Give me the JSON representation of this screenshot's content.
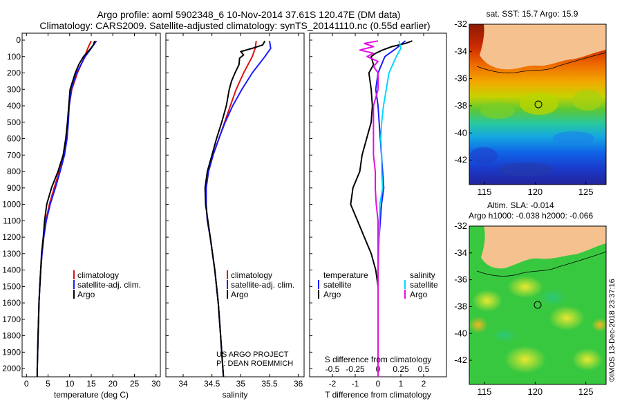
{
  "header": {
    "title_line1": "Argo profile: aoml 5902348_6 10-Nov-2014 37.61S 120.47E (DM data)",
    "title_line2": "Climatology: CARS2009. Satellite-adjusted climatology: synTS_20141110.nc (0.55d earlier)"
  },
  "credits": {
    "project": "US ARGO PROJECT",
    "pi": "PI: DEAN ROEMMICH",
    "imos": "©IMOS 13-Dec-2018 23:37:16"
  },
  "colors": {
    "climatology": "#e01010",
    "satellite": "#1a1aff",
    "argo": "#000000",
    "salinity_sat": "#00d8ff",
    "salinity_argo": "#e010e0",
    "land": "#f5c28f"
  },
  "chart_data": [
    {
      "id": "temperature",
      "type": "line",
      "xlabel": "temperature (deg C)",
      "ylabel": "",
      "xlim": [
        -1,
        31
      ],
      "ylim": [
        2050,
        0
      ],
      "xticks": [
        0,
        5,
        10,
        15,
        20,
        25,
        30
      ],
      "yticks": [
        0,
        100,
        200,
        300,
        400,
        500,
        600,
        700,
        800,
        900,
        1000,
        1100,
        1200,
        1300,
        1400,
        1500,
        1600,
        1700,
        1800,
        1900,
        2000
      ],
      "legend": [
        "climatology",
        "satellite-adj. clim.",
        "Argo"
      ],
      "legend_position": "lower-right",
      "series": [
        {
          "name": "climatology",
          "color": "red",
          "depth": [
            5,
            50,
            100,
            200,
            300,
            400,
            500,
            600,
            700,
            800,
            900,
            1000,
            1100,
            1200,
            1300,
            1400,
            1500,
            1600,
            1700,
            1800,
            1900,
            2000,
            2050
          ],
          "values": [
            15.0,
            14.2,
            13.5,
            11.8,
            10.5,
            9.9,
            9.6,
            9.2,
            8.6,
            7.6,
            6.4,
            5.3,
            4.5,
            4.0,
            3.6,
            3.3,
            3.1,
            2.9,
            2.8,
            2.7,
            2.6,
            2.5,
            2.5
          ]
        },
        {
          "name": "satellite-adj. clim.",
          "color": "blue",
          "depth": [
            5,
            50,
            100,
            200,
            300,
            400,
            500,
            600,
            700,
            800,
            900,
            1000,
            1100,
            1200,
            1300,
            1400,
            1500,
            1600,
            1700,
            1800,
            1900,
            2000,
            2050
          ],
          "values": [
            16.2,
            15.0,
            13.6,
            11.6,
            10.4,
            9.9,
            9.7,
            9.4,
            8.8,
            7.8,
            6.7,
            5.5,
            4.6,
            4.0,
            3.6,
            3.3,
            3.1,
            2.9,
            2.8,
            2.7,
            2.6,
            2.5,
            2.5
          ]
        },
        {
          "name": "Argo",
          "color": "black",
          "depth": [
            5,
            30,
            60,
            100,
            150,
            200,
            300,
            400,
            500,
            600,
            700,
            800,
            900,
            1000,
            1100,
            1200,
            1300,
            1400,
            1500,
            1600,
            1700,
            1800,
            1900,
            2000,
            2050
          ],
          "values": [
            15.8,
            15.5,
            14.6,
            13.2,
            12.1,
            11.3,
            10.1,
            9.8,
            9.5,
            9.1,
            8.5,
            7.3,
            5.8,
            4.7,
            4.2,
            3.9,
            3.5,
            3.3,
            3.1,
            2.9,
            2.8,
            2.7,
            2.6,
            2.5,
            2.5
          ]
        }
      ]
    },
    {
      "id": "salinity",
      "type": "line",
      "xlabel": "salinity",
      "ylabel": "",
      "xlim": [
        33.7,
        36.1
      ],
      "ylim": [
        2050,
        0
      ],
      "xticks": [
        34,
        34.5,
        35,
        35.5,
        36
      ],
      "legend": [
        "climatology",
        "satellite-adj. clim.",
        "Argo"
      ],
      "legend_position": "lower-right",
      "series": [
        {
          "name": "climatology",
          "color": "red",
          "depth": [
            5,
            50,
            100,
            200,
            300,
            400,
            500,
            600,
            700,
            800,
            900,
            1000,
            1100,
            1200,
            1300,
            1400,
            1500,
            1600,
            1700,
            1800,
            1900,
            2000,
            2050
          ],
          "values": [
            35.27,
            35.25,
            35.2,
            35.05,
            34.92,
            34.82,
            34.72,
            34.62,
            34.52,
            34.44,
            34.4,
            34.4,
            34.42,
            34.47,
            34.51,
            34.55,
            34.58,
            34.61,
            34.63,
            34.65,
            34.67,
            34.69,
            34.7
          ]
        },
        {
          "name": "satellite-adj. clim.",
          "color": "blue",
          "depth": [
            5,
            50,
            100,
            200,
            300,
            400,
            500,
            600,
            700,
            800,
            900,
            1000,
            1100,
            1200,
            1300,
            1400,
            1500,
            1600,
            1700,
            1800,
            1900,
            2000,
            2050
          ],
          "values": [
            35.5,
            35.52,
            35.42,
            35.2,
            35.02,
            34.86,
            34.73,
            34.62,
            34.52,
            34.44,
            34.4,
            34.4,
            34.42,
            34.47,
            34.51,
            34.55,
            34.58,
            34.61,
            34.63,
            34.65,
            34.67,
            34.69,
            34.7
          ]
        },
        {
          "name": "Argo",
          "color": "black",
          "depth": [
            5,
            30,
            50,
            70,
            90,
            110,
            150,
            200,
            250,
            300,
            400,
            500,
            600,
            700,
            800,
            900,
            1000,
            1100,
            1200,
            1300,
            1400,
            1500,
            1600,
            1700,
            1800,
            1900,
            2000,
            2050
          ],
          "values": [
            35.42,
            35.38,
            35.2,
            35.0,
            35.05,
            34.98,
            34.97,
            34.9,
            34.84,
            34.8,
            34.75,
            34.67,
            34.58,
            34.5,
            34.42,
            34.38,
            34.39,
            34.43,
            34.47,
            34.51,
            34.55,
            34.58,
            34.61,
            34.63,
            34.65,
            34.67,
            34.69,
            34.7
          ]
        }
      ]
    },
    {
      "id": "differences",
      "type": "line",
      "xlabel": "T difference from climatology",
      "top_label": "S difference from climatology",
      "ylabel": "",
      "xlim": [
        -3,
        3
      ],
      "ylim": [
        2050,
        0
      ],
      "xticks": [
        -2,
        -1,
        0,
        1,
        2
      ],
      "s_xticks": [
        "-0.5",
        "-0.25",
        "0",
        "0.25",
        "0.5"
      ],
      "legend_left": {
        "title": "temperature",
        "items": [
          "satellite",
          "Argo"
        ]
      },
      "legend_right": {
        "title": "salinity",
        "items": [
          "satellite",
          "Argo"
        ]
      },
      "series": [
        {
          "name": "temperature satellite",
          "color": "blue",
          "depth": [
            5,
            50,
            100,
            200,
            300,
            400,
            500,
            600,
            700,
            800,
            900,
            1000,
            1200,
            1400,
            1600,
            1800,
            2000,
            2050
          ],
          "values": [
            1.2,
            0.8,
            0.3,
            0.0,
            -0.1,
            0.0,
            0.05,
            0.1,
            0.15,
            0.2,
            0.25,
            0.15,
            0.05,
            0.0,
            0.0,
            0.0,
            0.0,
            0.0
          ]
        },
        {
          "name": "temperature Argo",
          "color": "black",
          "depth": [
            5,
            20,
            40,
            60,
            80,
            100,
            150,
            200,
            300,
            400,
            500,
            600,
            700,
            800,
            900,
            1000,
            1100,
            1200,
            1300,
            1400,
            1500,
            1600,
            1800,
            2000,
            2050
          ],
          "values": [
            1.5,
            1.2,
            0.6,
            0.2,
            -0.1,
            -0.3,
            -0.2,
            -0.4,
            -0.3,
            -0.25,
            -0.3,
            -0.5,
            -0.7,
            -0.8,
            -1.1,
            -1.2,
            -0.9,
            -0.6,
            -0.3,
            -0.1,
            0.0,
            0.0,
            0.0,
            0.0,
            0.0
          ]
        },
        {
          "name": "salinity satellite",
          "color": "cyan",
          "depth": [
            5,
            50,
            100,
            200,
            300,
            400,
            500,
            600,
            700,
            800,
            900,
            1000,
            1200,
            1400,
            1600,
            1800,
            2000,
            2050
          ],
          "values": [
            0.23,
            0.25,
            0.2,
            0.12,
            0.09,
            0.06,
            0.04,
            0.03,
            0.04,
            0.04,
            0.05,
            0.02,
            0.01,
            0.0,
            0.0,
            0.0,
            0.0,
            0.0
          ]
        },
        {
          "name": "salinity Argo",
          "color": "magenta",
          "depth": [
            5,
            20,
            40,
            60,
            80,
            100,
            130,
            160,
            200,
            300,
            400,
            500,
            600,
            700,
            800,
            900,
            1000,
            1100,
            1200,
            1400,
            1600,
            1800,
            2000,
            2050
          ],
          "values": [
            0.0,
            -0.15,
            -0.05,
            -0.2,
            -0.05,
            -0.12,
            0.0,
            -0.05,
            0.0,
            0.0,
            -0.05,
            -0.05,
            -0.05,
            -0.05,
            -0.03,
            -0.03,
            -0.02,
            0.0,
            0.0,
            0.0,
            0.0,
            0.0,
            0.0,
            0.0
          ]
        }
      ]
    },
    {
      "id": "sst_map",
      "type": "heatmap",
      "title": "sat. SST: 15.7 Argo: 15.9",
      "xticks": [
        115,
        120,
        125
      ],
      "yticks": [
        -32,
        -34,
        -36,
        -38,
        -40,
        -42
      ],
      "xlim": [
        113.5,
        127
      ],
      "ylim": [
        -43.8,
        -32
      ],
      "float_position": [
        120.47,
        -37.61
      ]
    },
    {
      "id": "sla_map",
      "type": "heatmap",
      "title_line1": "Altim. SLA: -0.014",
      "title_line2": "Argo h1000: -0.038 h2000: -0.066",
      "xticks": [
        115,
        120,
        125
      ],
      "yticks": [
        -32,
        -34,
        -36,
        -38,
        -40,
        -42
      ],
      "xlim": [
        113.5,
        127
      ],
      "ylim": [
        -43.8,
        -32
      ],
      "float_position": [
        120.47,
        -37.61
      ]
    }
  ]
}
